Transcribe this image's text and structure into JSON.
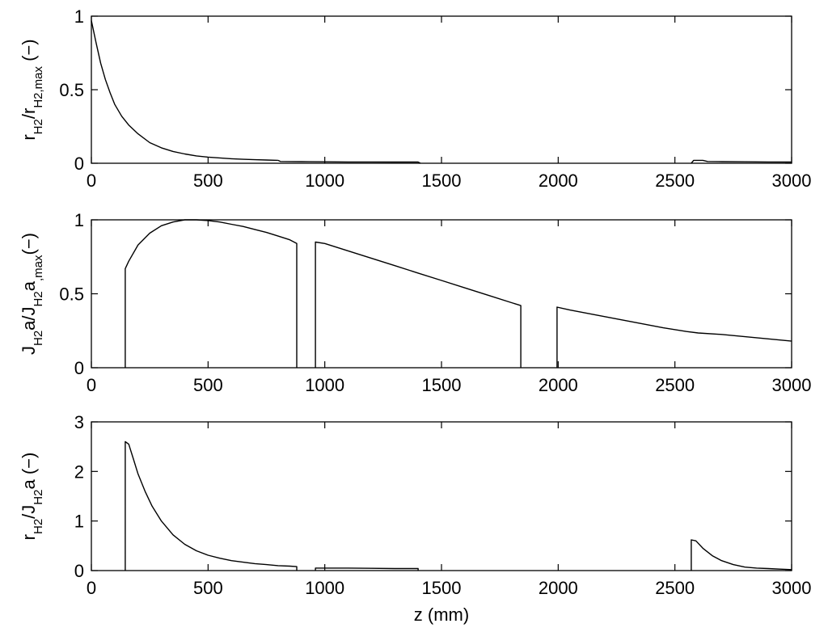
{
  "chart_data": [
    {
      "type": "line",
      "title": "",
      "xlabel": "",
      "ylabel": {
        "parts": [
          [
            "r",
            ""
          ],
          [
            "H2",
            "sub"
          ],
          [
            "/r",
            ""
          ],
          [
            "H2,max",
            "sub"
          ],
          [
            " (−)",
            ""
          ]
        ]
      },
      "xlim": [
        0,
        3000
      ],
      "ylim": [
        0,
        1
      ],
      "xticks": [
        0,
        500,
        1000,
        1500,
        2000,
        2500,
        3000
      ],
      "yticks": [
        0,
        0.5,
        1
      ],
      "yticklabels": [
        "0",
        "0.5",
        "1"
      ],
      "grid": false,
      "series": [
        {
          "segments": [
            {
              "x": [
                0,
                20,
                40,
                60,
                80,
                100,
                130,
                160,
                200,
                250,
                300,
                350,
                400,
                450,
                500,
                550,
                600,
                650,
                700,
                750,
                800
              ],
              "y": [
                0.97,
                0.82,
                0.68,
                0.57,
                0.48,
                0.4,
                0.32,
                0.26,
                0.2,
                0.14,
                0.105,
                0.08,
                0.063,
                0.05,
                0.042,
                0.036,
                0.031,
                0.027,
                0.024,
                0.022,
                0.02
              ]
            },
            {
              "x": [
                800,
                810,
                900,
                1000,
                1100,
                1200,
                1300,
                1400,
                1410
              ],
              "y": [
                0.02,
                0.012,
                0.011,
                0.01,
                0.009,
                0.009,
                0.008,
                0.008,
                0.0
              ]
            },
            {
              "x": [
                2570,
                2580,
                2620,
                2640,
                2700,
                2800,
                2900,
                3000
              ],
              "y": [
                0.0,
                0.02,
                0.02,
                0.012,
                0.011,
                0.01,
                0.009,
                0.008
              ]
            }
          ]
        }
      ]
    },
    {
      "type": "line",
      "title": "",
      "xlabel": "",
      "ylabel": {
        "parts": [
          [
            "J",
            ""
          ],
          [
            "H2",
            "sub"
          ],
          [
            "a/J",
            ""
          ],
          [
            "H2",
            "sub"
          ],
          [
            "a",
            ""
          ],
          [
            ",max",
            "sub"
          ],
          [
            "(−)",
            ""
          ]
        ]
      },
      "xlim": [
        0,
        3000
      ],
      "ylim": [
        0,
        1
      ],
      "xticks": [
        0,
        500,
        1000,
        1500,
        2000,
        2500,
        3000
      ],
      "yticks": [
        0,
        0.5,
        1
      ],
      "yticklabels": [
        "0",
        "0.5",
        "1"
      ],
      "grid": false,
      "series": [
        {
          "segments": [
            {
              "x": [
                145,
                145,
                160,
                200,
                250,
                300,
                350,
                400,
                450,
                500,
                550,
                600,
                650,
                700,
                750,
                800,
                850,
                880,
                880
              ],
              "y": [
                0,
                0.67,
                0.72,
                0.83,
                0.91,
                0.96,
                0.985,
                1.0,
                1.0,
                0.995,
                0.985,
                0.97,
                0.955,
                0.935,
                0.915,
                0.89,
                0.865,
                0.84,
                0
              ]
            },
            {
              "x": [
                960,
                960,
                1000,
                1100,
                1200,
                1300,
                1400,
                1500,
                1600,
                1700,
                1800,
                1840,
                1840
              ],
              "y": [
                0,
                0.85,
                0.84,
                0.79,
                0.74,
                0.69,
                0.64,
                0.59,
                0.54,
                0.49,
                0.44,
                0.42,
                0
              ]
            },
            {
              "x": [
                1995,
                1995,
                2050,
                2150,
                2250,
                2350,
                2450,
                2550,
                2600,
                2700,
                2800,
                2900,
                3000
              ],
              "y": [
                0,
                0.41,
                0.39,
                0.36,
                0.33,
                0.3,
                0.27,
                0.245,
                0.235,
                0.225,
                0.21,
                0.195,
                0.18
              ]
            }
          ]
        }
      ]
    },
    {
      "type": "line",
      "title": "",
      "xlabel": "z (mm)",
      "ylabel": {
        "parts": [
          [
            "r",
            ""
          ],
          [
            "H2",
            "sub"
          ],
          [
            "/J",
            ""
          ],
          [
            "H2",
            "sub"
          ],
          [
            "a (−)",
            ""
          ]
        ]
      },
      "xlim": [
        0,
        3000
      ],
      "ylim": [
        0,
        3
      ],
      "xticks": [
        0,
        500,
        1000,
        1500,
        2000,
        2500,
        3000
      ],
      "yticks": [
        0,
        1,
        2,
        3
      ],
      "yticklabels": [
        "0",
        "1",
        "2",
        "3"
      ],
      "grid": false,
      "series": [
        {
          "segments": [
            {
              "x": [
                145,
                145,
                160,
                180,
                200,
                230,
                260,
                300,
                350,
                400,
                450,
                500,
                550,
                600,
                650,
                700,
                750,
                800,
                850,
                880,
                880
              ],
              "y": [
                0,
                2.6,
                2.55,
                2.25,
                1.95,
                1.6,
                1.3,
                1.0,
                0.72,
                0.53,
                0.4,
                0.31,
                0.25,
                0.2,
                0.17,
                0.14,
                0.12,
                0.1,
                0.09,
                0.08,
                0
              ]
            },
            {
              "x": [
                960,
                960,
                1100,
                1200,
                1300,
                1400,
                1400
              ],
              "y": [
                0,
                0.05,
                0.05,
                0.045,
                0.04,
                0.04,
                0
              ]
            },
            {
              "x": [
                2570,
                2570,
                2590,
                2620,
                2660,
                2700,
                2750,
                2800,
                2850,
                2900,
                2950,
                3000
              ],
              "y": [
                0,
                0.62,
                0.6,
                0.45,
                0.3,
                0.2,
                0.12,
                0.07,
                0.05,
                0.04,
                0.03,
                0.02
              ]
            }
          ]
        }
      ]
    }
  ]
}
